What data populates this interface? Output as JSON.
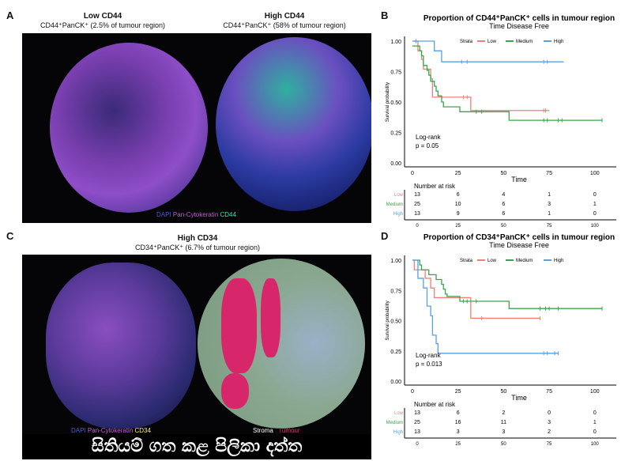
{
  "panel_a": {
    "label": "A",
    "left_title": "Low CD44",
    "left_subtitle": "CD44⁺PanCK⁺ (2.5% of tumour region)",
    "right_title": "High CD44",
    "right_subtitle": "CD44⁺PanCK⁺ (58% of tumour region)",
    "legend": [
      "DAPI",
      "Pan-Cytokeratin",
      "CD44"
    ],
    "legend_colors": [
      "#4a5bd6",
      "#c65bd8",
      "#3fe0b0"
    ]
  },
  "panel_c": {
    "label": "C",
    "title": "High CD34",
    "subtitle": "CD34⁺PanCK⁺ (6.7% of tumour region)",
    "legend_left": [
      "DAPI",
      "Pan-Cytokeratin",
      "CD34"
    ],
    "legend_left_colors": [
      "#4a5bd6",
      "#c65bd8",
      "#f2f25a"
    ],
    "legend_right": [
      "Stroma",
      "Tumour"
    ],
    "legend_right_colors": [
      "#ffffff",
      "#e0306a"
    ]
  },
  "caption": "සිතියම් ගත කළ පිලිකා දත්ත",
  "chart_data": [
    {
      "panel": "B",
      "type": "line",
      "subtype": "kaplan-meier",
      "title": "Proportion of CD44⁺PanCK⁺ cells in tumour region",
      "subtitle": "Time Disease Free",
      "xlabel": "Time",
      "ylabel": "Survival probability",
      "xlim": [
        0,
        104
      ],
      "ylim": [
        0,
        1
      ],
      "xticks": [
        "0",
        "25",
        "50",
        "75",
        "100"
      ],
      "yticks": [
        "0.00",
        "0.25",
        "0.50",
        "0.75",
        "1.00"
      ],
      "legend_title": "Strata",
      "legend_position": "top",
      "annotation": [
        "Log-rank",
        "p = 0.05"
      ],
      "series": [
        {
          "name": "Low",
          "color": "#f07f7a",
          "steps": [
            [
              0,
              1
            ],
            [
              3,
              0.92
            ],
            [
              5,
              0.85
            ],
            [
              6,
              0.77
            ],
            [
              10,
              0.69
            ],
            [
              11,
              0.54
            ],
            [
              32,
              0.43
            ]
          ],
          "end": 75,
          "censors": [
            28,
            30,
            72,
            73
          ]
        },
        {
          "name": "Medium",
          "color": "#3aa64a",
          "steps": [
            [
              0,
              0.96
            ],
            [
              4,
              0.92
            ],
            [
              5,
              0.88
            ],
            [
              6,
              0.8
            ],
            [
              8,
              0.76
            ],
            [
              9,
              0.72
            ],
            [
              10,
              0.67
            ],
            [
              12,
              0.63
            ],
            [
              13,
              0.59
            ],
            [
              14,
              0.55
            ],
            [
              16,
              0.5
            ],
            [
              17,
              0.46
            ],
            [
              26,
              0.42
            ],
            [
              53,
              0.35
            ]
          ],
          "end": 104,
          "censors": [
            35,
            38,
            72,
            74,
            80,
            82,
            104
          ]
        },
        {
          "name": "High",
          "color": "#5a9fe0",
          "steps": [
            [
              0,
              1
            ],
            [
              12,
              0.92
            ],
            [
              16,
              0.83
            ]
          ],
          "end": 83,
          "censors": [
            2,
            27,
            30,
            72,
            74
          ]
        }
      ],
      "risk_table": {
        "title": "Number at risk",
        "times": [
          "0",
          "25",
          "50",
          "75",
          "100"
        ],
        "rows": [
          {
            "name": "Low",
            "values": [
              "13",
              "6",
              "4",
              "1",
              "0"
            ]
          },
          {
            "name": "Medium",
            "values": [
              "25",
              "10",
              "6",
              "3",
              "1"
            ]
          },
          {
            "name": "High",
            "values": [
              "13",
              "9",
              "6",
              "1",
              "0"
            ]
          }
        ]
      }
    },
    {
      "panel": "D",
      "type": "line",
      "subtype": "kaplan-meier",
      "title": "Proportion of CD34⁺PanCK⁺ cells in tumour region",
      "subtitle": "Time Disease Free",
      "xlabel": "Time",
      "ylabel": "Survival probability",
      "xlim": [
        0,
        104
      ],
      "ylim": [
        0,
        1
      ],
      "xticks": [
        "0",
        "25",
        "50",
        "75",
        "100"
      ],
      "yticks": [
        "0.00",
        "0.25",
        "0.50",
        "0.75",
        "1.00"
      ],
      "legend_title": "Strata",
      "legend_position": "top",
      "annotation": [
        "Log-rank",
        "p = 0.013"
      ],
      "series": [
        {
          "name": "Low",
          "color": "#f07f7a",
          "steps": [
            [
              0,
              1
            ],
            [
              1,
              0.92
            ],
            [
              7,
              0.85
            ],
            [
              10,
              0.77
            ],
            [
              12,
              0.69
            ],
            [
              32,
              0.52
            ]
          ],
          "end": 70,
          "censors": [
            38,
            70
          ]
        },
        {
          "name": "Medium",
          "color": "#3aa64a",
          "steps": [
            [
              0,
              1
            ],
            [
              4,
              0.96
            ],
            [
              5,
              0.92
            ],
            [
              9,
              0.88
            ],
            [
              13,
              0.84
            ],
            [
              16,
              0.8
            ],
            [
              17,
              0.76
            ],
            [
              18,
              0.72
            ],
            [
              19,
              0.7
            ],
            [
              26,
              0.66
            ],
            [
              53,
              0.6
            ]
          ],
          "end": 104,
          "censors": [
            28,
            30,
            35,
            70,
            73,
            75,
            80,
            104
          ]
        },
        {
          "name": "High",
          "color": "#5a9fe0",
          "steps": [
            [
              0,
              1
            ],
            [
              3,
              0.85
            ],
            [
              6,
              0.77
            ],
            [
              8,
              0.62
            ],
            [
              10,
              0.54
            ],
            [
              11,
              0.38
            ],
            [
              13,
              0.31
            ],
            [
              14,
              0.23
            ]
          ],
          "end": 80,
          "censors": [
            72,
            74,
            78,
            80
          ]
        }
      ],
      "risk_table": {
        "title": "Number at risk",
        "times": [
          "0",
          "25",
          "50",
          "75",
          "100"
        ],
        "rows": [
          {
            "name": "Low",
            "values": [
              "13",
              "6",
              "2",
              "0",
              "0"
            ]
          },
          {
            "name": "Medium",
            "values": [
              "25",
              "16",
              "11",
              "3",
              "1"
            ]
          },
          {
            "name": "High",
            "values": [
              "13",
              "3",
              "3",
              "2",
              "0"
            ]
          }
        ]
      }
    }
  ]
}
